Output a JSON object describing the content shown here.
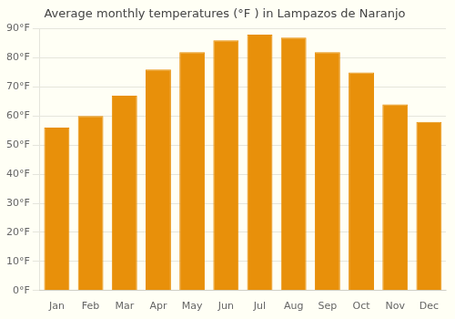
{
  "chart_data": {
    "type": "bar",
    "title": "Average monthly temperatures (°F ) in Lampazos de Naranjo",
    "categories": [
      "Jan",
      "Feb",
      "Mar",
      "Apr",
      "May",
      "Jun",
      "Jul",
      "Aug",
      "Sep",
      "Oct",
      "Nov",
      "Dec"
    ],
    "values": [
      56,
      60,
      67,
      76,
      82,
      86,
      88,
      87,
      82,
      75,
      64,
      58
    ],
    "color": "#E8900A",
    "ylim": [
      0,
      90
    ],
    "yticks": [
      {
        "value": 0,
        "label": "0°F"
      },
      {
        "value": 10,
        "label": "10°F"
      },
      {
        "value": 20,
        "label": "20°F"
      },
      {
        "value": 30,
        "label": "30°F"
      },
      {
        "value": 40,
        "label": "40°F"
      },
      {
        "value": 50,
        "label": "50°F"
      },
      {
        "value": 60,
        "label": "60°F"
      },
      {
        "value": 70,
        "label": "70°F"
      },
      {
        "value": 80,
        "label": "80°F"
      },
      {
        "value": 90,
        "label": "90°F"
      }
    ],
    "grid": true
  }
}
